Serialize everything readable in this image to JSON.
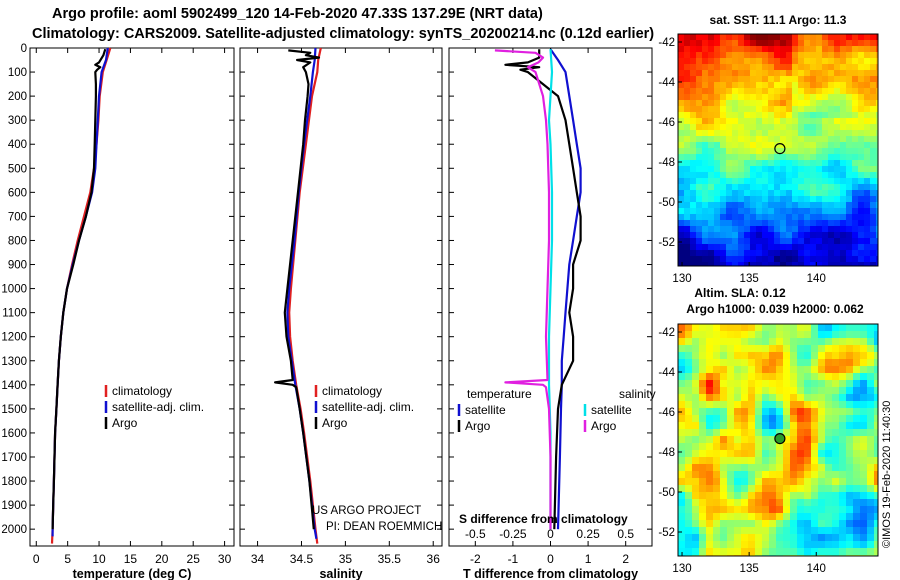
{
  "header": {
    "line1": "Argo profile: aoml 5902499_120 14-Feb-2020 47.33S 137.29E (NRT data)",
    "line2": "Climatology: CARS2009. Satellite-adjusted climatology: synTS_20200214.nc (0.12d earlier)"
  },
  "colors": {
    "climatology": "#e02020",
    "satellite": "#1010d0",
    "argo": "#000000",
    "sal_satellite": "#00e0e8",
    "sal_argo": "#e020e0"
  },
  "chart_data": [
    {
      "id": "temperature",
      "type": "line",
      "xlabel": "temperature (deg C)",
      "ylabel": "",
      "xlim": [
        -1,
        31.5
      ],
      "ylim": [
        2070,
        0
      ],
      "xticks": [
        "0",
        "5",
        "10",
        "15",
        "20",
        "25",
        "30"
      ],
      "xtick_values": [
        0,
        5,
        10,
        15,
        20,
        25,
        30
      ],
      "yticks": [
        "0",
        "100",
        "200",
        "300",
        "400",
        "500",
        "600",
        "700",
        "800",
        "900",
        "1000",
        "1100",
        "1200",
        "1300",
        "1400",
        "1500",
        "1600",
        "1700",
        "1800",
        "1900",
        "2000"
      ],
      "ytick_values": [
        0,
        100,
        200,
        300,
        400,
        500,
        600,
        700,
        800,
        900,
        1000,
        1100,
        1200,
        1300,
        1400,
        1500,
        1600,
        1700,
        1800,
        1900,
        2000
      ],
      "legend": [
        "climatology",
        "satellite-adj. clim.",
        "Argo"
      ],
      "series": [
        {
          "name": "climatology",
          "depth": [
            0,
            50,
            100,
            200,
            300,
            400,
            500,
            600,
            700,
            800,
            900,
            1000,
            1100,
            1200,
            1300,
            1400,
            1500,
            1600,
            1700,
            1800,
            1900,
            2000,
            2060
          ],
          "values": [
            11.8,
            11.2,
            10.6,
            10.1,
            9.9,
            9.6,
            9.2,
            8.6,
            7.6,
            6.6,
            5.7,
            4.9,
            4.3,
            3.9,
            3.6,
            3.4,
            3.2,
            3.0,
            2.9,
            2.8,
            2.7,
            2.6,
            2.5
          ]
        },
        {
          "name": "satellite-adj. clim.",
          "depth": [
            0,
            50,
            100,
            200,
            300,
            400,
            500,
            600,
            700,
            800,
            900,
            1000,
            1100,
            1200,
            1300,
            1400,
            1500,
            1600,
            1700,
            1800,
            1900,
            2000,
            2030
          ],
          "values": [
            11.4,
            11.1,
            10.4,
            10.0,
            9.8,
            9.6,
            9.4,
            8.9,
            7.9,
            6.8,
            5.8,
            4.9,
            4.3,
            3.9,
            3.6,
            3.4,
            3.2,
            3.0,
            2.9,
            2.8,
            2.7,
            2.6,
            2.6
          ]
        },
        {
          "name": "Argo",
          "depth": [
            5,
            30,
            60,
            70,
            80,
            90,
            100,
            150,
            200,
            300,
            400,
            500,
            600,
            700,
            800,
            900,
            1000,
            1100,
            1200,
            1300,
            1400,
            1500,
            1600,
            1700,
            1800,
            1900,
            2000
          ],
          "values": [
            11.0,
            10.7,
            10.0,
            9.4,
            10.2,
            9.7,
            9.4,
            9.5,
            9.5,
            9.4,
            9.3,
            9.2,
            8.8,
            7.9,
            6.8,
            5.9,
            4.9,
            4.3,
            3.9,
            3.6,
            3.4,
            3.2,
            3.0,
            2.9,
            2.8,
            2.7,
            2.6
          ]
        }
      ]
    },
    {
      "id": "salinity",
      "type": "line",
      "xlabel": "salinity",
      "xlim": [
        33.8,
        36.1
      ],
      "ylim": [
        2070,
        0
      ],
      "xticks": [
        "34",
        "34.5",
        "35",
        "35.5",
        "36"
      ],
      "xtick_values": [
        34,
        34.5,
        35,
        35.5,
        36
      ],
      "legend": [
        "climatology",
        "satellite-adj. clim.",
        "Argo"
      ],
      "annotations": [
        "US ARGO PROJECT",
        "PI: DEAN ROEMMICH"
      ],
      "series": [
        {
          "name": "climatology",
          "depth": [
            0,
            50,
            100,
            200,
            400,
            600,
            800,
            1000,
            1100,
            1200,
            1300,
            1400,
            1500,
            1600,
            1800,
            2000,
            2060
          ],
          "values": [
            34.72,
            34.69,
            34.68,
            34.62,
            34.55,
            34.48,
            34.43,
            34.38,
            34.36,
            34.37,
            34.4,
            34.44,
            34.49,
            34.53,
            34.6,
            34.66,
            34.68
          ]
        },
        {
          "name": "satellite-adj. clim.",
          "depth": [
            0,
            50,
            100,
            200,
            400,
            600,
            800,
            1000,
            1100,
            1200,
            1300,
            1400,
            1500,
            1600,
            1800,
            2000,
            2040
          ],
          "values": [
            34.66,
            34.65,
            34.63,
            34.6,
            34.53,
            34.47,
            34.42,
            34.36,
            34.34,
            34.35,
            34.39,
            34.43,
            34.48,
            34.52,
            34.59,
            34.65,
            34.67
          ]
        },
        {
          "name": "Argo",
          "depth": [
            10,
            20,
            30,
            40,
            50,
            60,
            80,
            100,
            150,
            200,
            300,
            400,
            600,
            800,
            1000,
            1100,
            1200,
            1300,
            1380,
            1390,
            1400,
            1410,
            1500,
            1600,
            1800,
            2000
          ],
          "values": [
            34.35,
            34.6,
            34.55,
            34.7,
            34.45,
            34.6,
            34.52,
            34.55,
            34.58,
            34.57,
            34.54,
            34.52,
            34.46,
            34.4,
            34.34,
            34.31,
            34.33,
            34.38,
            34.4,
            34.2,
            34.4,
            34.44,
            34.48,
            34.52,
            34.59,
            34.64
          ]
        }
      ]
    },
    {
      "id": "difference",
      "type": "line",
      "xlabel": "T difference from climatology",
      "xlabel2": "S difference from climatology",
      "xlim": [
        -2.7,
        2.7
      ],
      "ylim": [
        2070,
        0
      ],
      "xticks": [
        "-2",
        "-1",
        "0",
        "1",
        "2"
      ],
      "xtick_values": [
        -2,
        -1,
        0,
        1,
        2
      ],
      "xticks_salinity": [
        "-0.5",
        "-0.25",
        "0",
        "0.25",
        "0.5"
      ],
      "xtick_salinity_values": [
        -0.5,
        -0.25,
        0,
        0.25,
        0.5
      ],
      "legend_left_title": "temperature",
      "legend_right_title": "salinity",
      "legend": [
        "satellite",
        "Argo",
        "satellite",
        "Argo"
      ],
      "series": [
        {
          "name": "temperature satellite",
          "depth": [
            5,
            50,
            100,
            200,
            300,
            400,
            500,
            600,
            700,
            800,
            900,
            1000,
            1100,
            1200,
            1300,
            1400,
            1500,
            1700,
            2000
          ],
          "values": [
            0.0,
            0.2,
            0.4,
            0.5,
            0.6,
            0.7,
            0.8,
            0.8,
            0.7,
            0.6,
            0.5,
            0.45,
            0.4,
            0.35,
            0.3,
            0.3,
            0.28,
            0.25,
            0.2
          ]
        },
        {
          "name": "temperature Argo",
          "depth": [
            5,
            40,
            60,
            70,
            80,
            90,
            100,
            150,
            200,
            300,
            400,
            500,
            600,
            700,
            800,
            900,
            1000,
            1100,
            1200,
            1300,
            1400,
            1500,
            1700,
            2000
          ],
          "values": [
            -0.3,
            -0.3,
            -0.6,
            -1.2,
            -0.3,
            -0.8,
            -0.6,
            -0.2,
            0.2,
            0.4,
            0.5,
            0.6,
            0.7,
            0.8,
            0.8,
            0.6,
            0.6,
            0.5,
            0.6,
            0.6,
            0.3,
            0.2,
            0.15,
            0.1
          ]
        },
        {
          "name": "salinity satellite",
          "depth": [
            5,
            100,
            200,
            300,
            400,
            600,
            800,
            1000,
            1200,
            1400,
            1600,
            1800,
            2000
          ],
          "values": [
            0.0,
            0.01,
            0.0,
            -0.01,
            0.0,
            0.01,
            0.01,
            0.0,
            -0.01,
            -0.01,
            0.0,
            0.0,
            0.0
          ]
        },
        {
          "name": "salinity Argo",
          "depth": [
            10,
            20,
            40,
            60,
            80,
            100,
            200,
            300,
            400,
            600,
            800,
            1000,
            1200,
            1380,
            1390,
            1400,
            1410,
            1500,
            1700,
            2000
          ],
          "values": [
            -0.37,
            -0.1,
            -0.05,
            -0.08,
            -0.15,
            -0.1,
            -0.05,
            -0.03,
            -0.02,
            -0.01,
            -0.01,
            -0.02,
            -0.03,
            -0.02,
            -0.3,
            -0.05,
            -0.03,
            -0.01,
            0.0,
            0.0
          ]
        }
      ]
    }
  ],
  "maps": {
    "sst": {
      "title": "sat. SST: 11.1 Argo: 11.3",
      "lat_ticks": [
        "-42",
        "-44",
        "-46",
        "-48",
        "-50",
        "-52"
      ],
      "lat_values": [
        -42,
        -44,
        -46,
        -48,
        -50,
        -52
      ],
      "lon_ticks": [
        "130",
        "135",
        "140"
      ],
      "lon_values": [
        130,
        135,
        140
      ],
      "lat_range": [
        -53.2,
        -41.6
      ],
      "lon_range": [
        129.7,
        144.6
      ],
      "marker": {
        "lon": 137.29,
        "lat": -47.33
      }
    },
    "sla": {
      "title1": "Altim. SLA: 0.12",
      "title2": "Argo h1000: 0.039 h2000: 0.062",
      "lat_ticks": [
        "-42",
        "-44",
        "-46",
        "-48",
        "-50",
        "-52"
      ],
      "lat_values": [
        -42,
        -44,
        -46,
        -48,
        -50,
        -52
      ],
      "lon_ticks": [
        "130",
        "135",
        "140"
      ],
      "lon_values": [
        130,
        135,
        140
      ],
      "lat_range": [
        -53.2,
        -41.6
      ],
      "lon_range": [
        129.7,
        144.6
      ],
      "marker": {
        "lon": 137.29,
        "lat": -47.33
      }
    }
  },
  "footer": {
    "credit": "©IMOS 19-Feb-2020 11:40:30"
  }
}
